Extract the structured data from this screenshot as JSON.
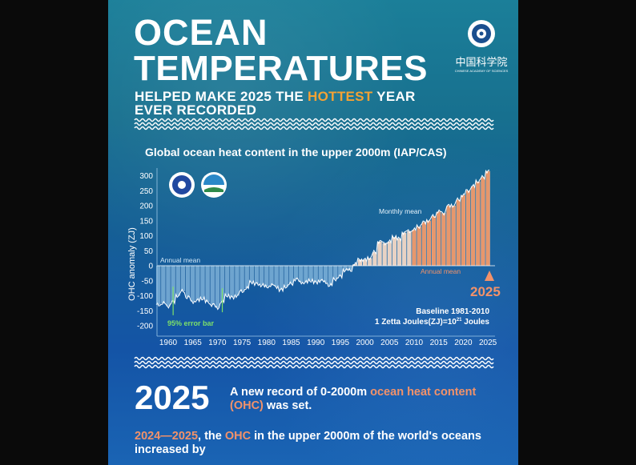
{
  "header": {
    "title_line1": "OCEAN",
    "title_line2": "TEMPERATURES",
    "subtitle_pre": "HELPED MAKE 2025 THE ",
    "subtitle_highlight": "HOTTEST",
    "subtitle_post": " YEAR",
    "subtitle_line2": "EVER RECORDED",
    "logo_text_zh": "中国科学院",
    "logo_text_en": "CHINESE ACADEMY OF SCIENCES"
  },
  "colors": {
    "highlight": "#f5a234",
    "accent_orange": "#f2926a",
    "error_bar": "#7de06a",
    "negative_bar": "#a9d6f2",
    "positive_bar": "#f29a6a"
  },
  "chart_data": {
    "type": "bar",
    "title": "Global ocean heat content in the upper 2000m (IAP/CAS)",
    "ylabel": "OHC anomaly (ZJ)",
    "ylim": [
      -200,
      300
    ],
    "yticks": [
      300,
      250,
      200,
      150,
      100,
      50,
      0,
      -50,
      -100,
      -150,
      -200
    ],
    "xticks": [
      1960,
      1965,
      1970,
      1975,
      1980,
      1985,
      1990,
      1995,
      2000,
      2005,
      2010,
      2015,
      2020,
      2025
    ],
    "years": [
      1958,
      1959,
      1960,
      1961,
      1962,
      1963,
      1964,
      1965,
      1966,
      1967,
      1968,
      1969,
      1970,
      1971,
      1972,
      1973,
      1974,
      1975,
      1976,
      1977,
      1978,
      1979,
      1980,
      1981,
      1982,
      1983,
      1984,
      1985,
      1986,
      1987,
      1988,
      1989,
      1990,
      1991,
      1992,
      1993,
      1994,
      1995,
      1996,
      1997,
      1998,
      1999,
      2000,
      2001,
      2002,
      2003,
      2004,
      2005,
      2006,
      2007,
      2008,
      2009,
      2010,
      2011,
      2012,
      2013,
      2014,
      2015,
      2016,
      2017,
      2018,
      2019,
      2020,
      2021,
      2022,
      2023,
      2024,
      2025
    ],
    "annual_mean": [
      -130,
      -125,
      -135,
      -120,
      -100,
      -85,
      -105,
      -120,
      -115,
      -110,
      -120,
      -130,
      -140,
      -120,
      -100,
      -105,
      -100,
      -85,
      -75,
      -55,
      -60,
      -65,
      -70,
      -65,
      -70,
      -80,
      -70,
      -60,
      -45,
      -55,
      -55,
      -50,
      -55,
      -50,
      -55,
      -65,
      -45,
      -35,
      -15,
      -15,
      5,
      20,
      20,
      25,
      45,
      80,
      75,
      80,
      95,
      90,
      110,
      115,
      120,
      130,
      145,
      150,
      165,
      180,
      175,
      200,
      200,
      220,
      235,
      250,
      265,
      280,
      295,
      315
    ],
    "error_bars": [
      {
        "year": 1961,
        "low": -165,
        "high": -70
      },
      {
        "year": 1971,
        "low": -155,
        "high": -75
      }
    ],
    "labels": {
      "annual_mean_left": "Annual mean",
      "monthly_mean": "Monthly mean",
      "annual_mean_right": "Annual mean",
      "highlight_year": "2025",
      "error_bar": "95% error bar",
      "baseline": "Baseline 1981-2010",
      "unit_pre": "1 Zetta Joules(ZJ)=10",
      "unit_sup": "21",
      "unit_post": " Joules"
    },
    "grid": false
  },
  "footer": {
    "big_year": "2025",
    "record_pre": "A new record of 0-2000m ",
    "record_hl": "ocean heat content",
    "record_hl2": "(OHC)",
    "record_post": " was set.",
    "inc_hl": "2024—2025",
    "inc_mid": ", the ",
    "inc_hl2": "OHC",
    "inc_post": " in the upper 2000m of the world's oceans",
    "inc_line2": "increased by"
  }
}
